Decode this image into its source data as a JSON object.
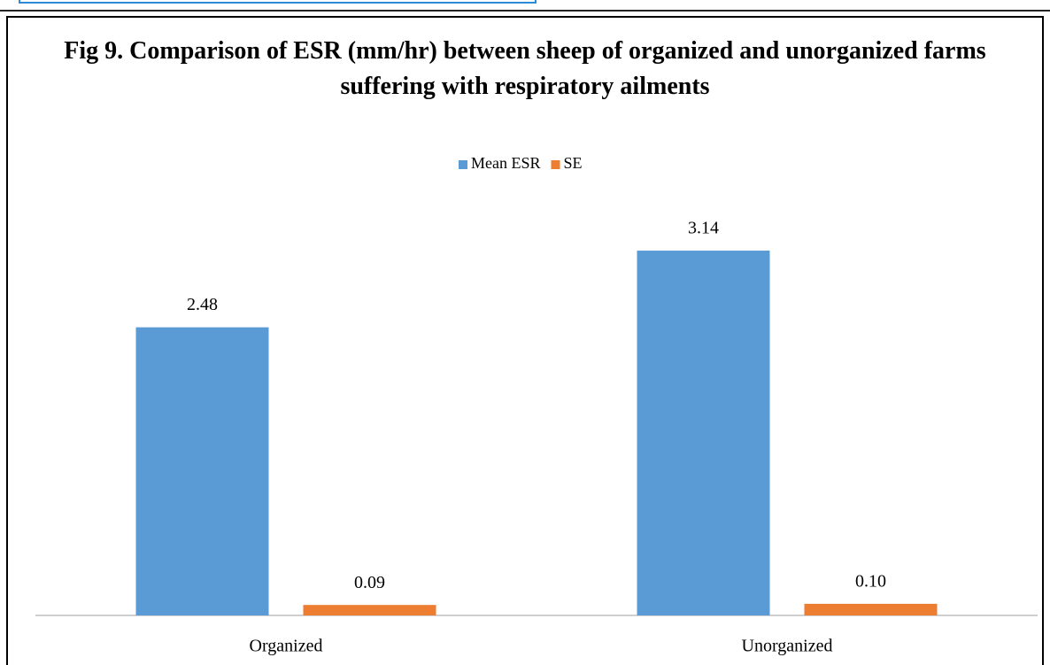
{
  "chart_data": {
    "type": "bar",
    "title": "Fig 9. Comparison of ESR (mm/hr) between sheep of organized and unorganized farms suffering with respiratory ailments",
    "categories": [
      "Organized",
      "Unorganized"
    ],
    "series": [
      {
        "name": "Mean ESR",
        "color": "#5b9bd5",
        "values": [
          2.48,
          3.14
        ]
      },
      {
        "name": "SE",
        "color": "#ed7d31",
        "values": [
          0.09,
          0.1
        ],
        "value_labels": [
          "0.09",
          "0.10"
        ]
      }
    ],
    "legend": "top"
  }
}
